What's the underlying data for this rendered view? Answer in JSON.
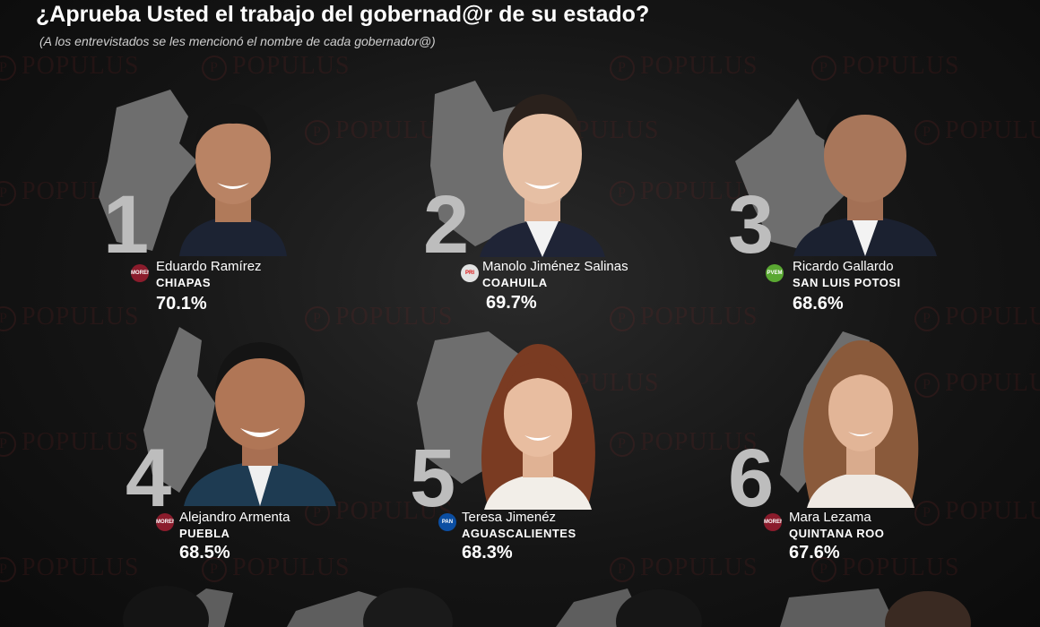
{
  "header": {
    "title": "¿Aprueba Usted el trabajo del gobernad@r de su estado?",
    "subtitle": "(A los entrevistados se les mencionó el nombre de cada gobernador@)"
  },
  "watermark": {
    "text": "POPULUS",
    "mark": "P"
  },
  "governors": [
    {
      "rank": "1",
      "name": "Eduardo Ramírez",
      "state": "CHIAPAS",
      "approval": "70.1%",
      "party": "MORENA",
      "party_icon": "morena-logo-icon",
      "party_color": "#8b1c2c"
    },
    {
      "rank": "2",
      "name": "Manolo Jiménez Salinas",
      "state": "COAHUILA",
      "approval": "69.7%",
      "party": "PRI",
      "party_icon": "pri-logo-icon",
      "party_color": "#e2e2e2"
    },
    {
      "rank": "3",
      "name": "Ricardo Gallardo",
      "state": "SAN LUIS POTOSI",
      "approval": "68.6%",
      "party": "PVEM",
      "party_icon": "pvem-logo-icon",
      "party_color": "#5aa832"
    },
    {
      "rank": "4",
      "name": "Alejandro Armenta",
      "state": "PUEBLA",
      "approval": "68.5%",
      "party": "MORENA",
      "party_icon": "morena-logo-icon",
      "party_color": "#8b1c2c"
    },
    {
      "rank": "5",
      "name": "Teresa Jimenéz",
      "state": "AGUASCALIENTES",
      "approval": "68.3%",
      "party": "PAN",
      "party_icon": "pan-logo-icon",
      "party_color": "#0b4ea2"
    },
    {
      "rank": "6",
      "name": "Mara Lezama",
      "state": "QUINTANA ROO",
      "approval": "67.6%",
      "party": "MORENA",
      "party_icon": "morena-logo-icon",
      "party_color": "#8b1c2c"
    }
  ]
}
